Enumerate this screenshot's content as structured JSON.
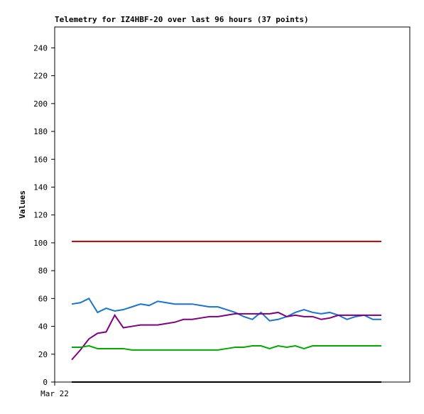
{
  "chart_data": {
    "type": "line",
    "title": "Telemetry for IZ4HBF-20 over last 96 hours (37 points)",
    "y_label": "Values",
    "x_start_label": "Mar 22",
    "ylim": [
      0,
      255
    ],
    "yticks": [
      0,
      20,
      40,
      60,
      80,
      100,
      120,
      140,
      160,
      180,
      200,
      220,
      240
    ],
    "series": [
      {
        "color": "#1874cd",
        "values": [
          56,
          57,
          60,
          50,
          53,
          51,
          52,
          54,
          56,
          55,
          58,
          57,
          56,
          56,
          56,
          55,
          54,
          54,
          52,
          50,
          47,
          45,
          50,
          44,
          45,
          47,
          50,
          52,
          50,
          49,
          50,
          48,
          45,
          47,
          48,
          45,
          45
        ]
      },
      {
        "color": "#800080",
        "values": [
          16,
          23,
          31,
          35,
          36,
          48,
          39,
          40,
          41,
          41,
          41,
          42,
          43,
          45,
          45,
          46,
          47,
          47,
          48,
          49,
          49,
          49,
          49,
          49,
          50,
          47,
          48,
          47,
          47,
          45,
          46,
          48,
          48,
          48,
          48,
          48,
          48
        ]
      },
      {
        "color": "#00aa00",
        "values": [
          25,
          25,
          26,
          24,
          24,
          24,
          24,
          23,
          23,
          23,
          23,
          23,
          23,
          23,
          23,
          23,
          23,
          23,
          24,
          25,
          25,
          26,
          26,
          24,
          26,
          25,
          26,
          24,
          26,
          26,
          26,
          26,
          26,
          26,
          26,
          26,
          26
        ]
      },
      {
        "color": "#e00000",
        "values": [
          101,
          101,
          101,
          101,
          101,
          101,
          101,
          101,
          101,
          101,
          101,
          101,
          101,
          101,
          101,
          101,
          101,
          101,
          101,
          101,
          101,
          101,
          101,
          101,
          101,
          101,
          101,
          101,
          101,
          101,
          101,
          101,
          101,
          101,
          101,
          101,
          101
        ]
      },
      {
        "color": "#000000",
        "values": [
          0,
          0,
          0,
          0,
          0,
          0,
          0,
          0,
          0,
          0,
          0,
          0,
          0,
          0,
          0,
          0,
          0,
          0,
          0,
          0,
          0,
          0,
          0,
          0,
          0,
          0,
          0,
          0,
          0,
          0,
          0,
          0,
          0,
          0,
          0,
          0,
          0
        ]
      }
    ]
  }
}
